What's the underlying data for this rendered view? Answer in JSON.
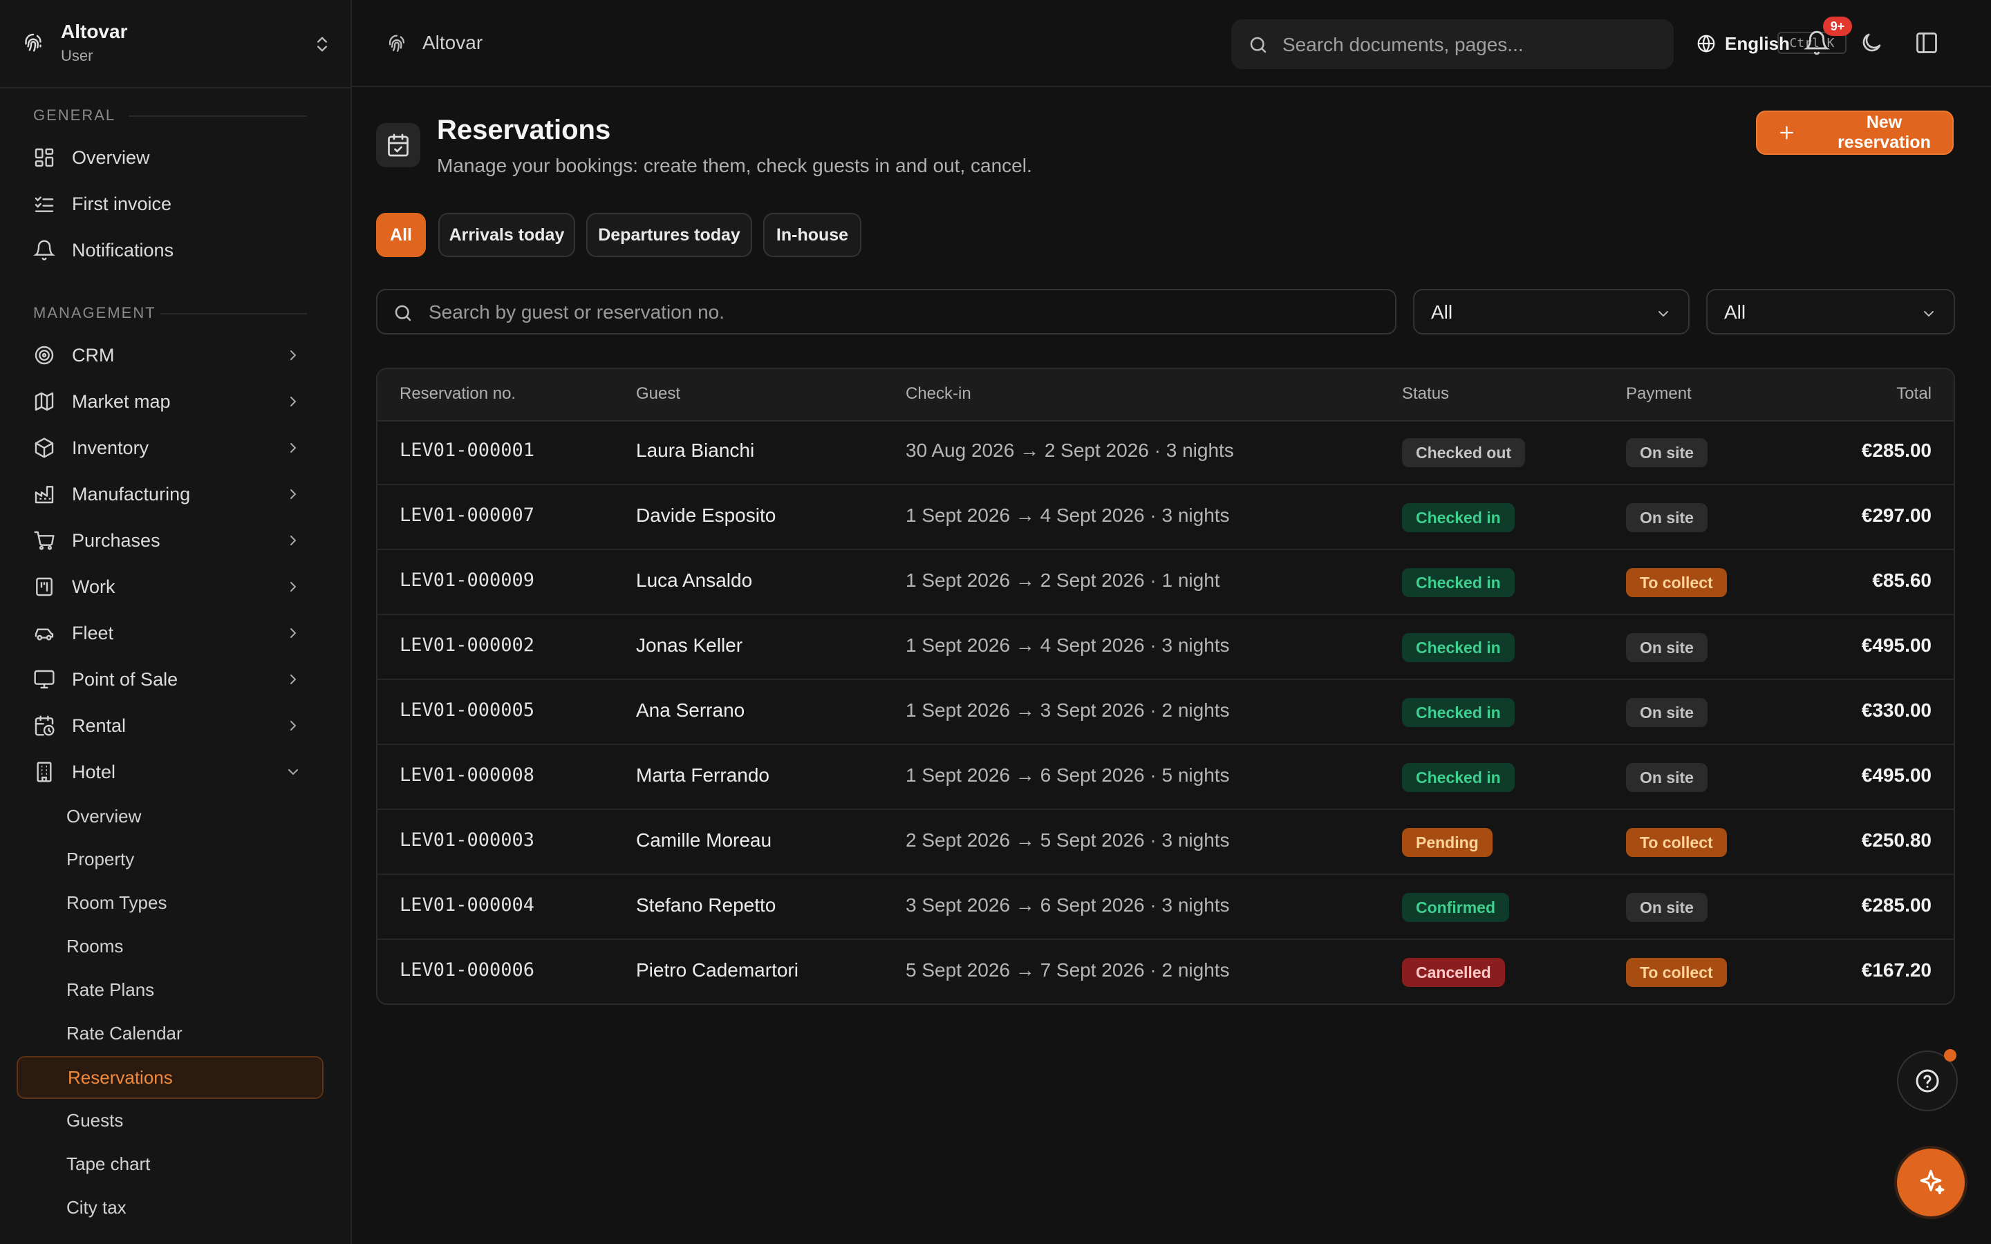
{
  "org": {
    "name": "Altovar",
    "role": "User"
  },
  "topbar": {
    "breadcrumb": "Altovar",
    "search_placeholder": "Search documents, pages...",
    "search_shortcut": "Ctrl K",
    "language": "English",
    "notifications_badge": "9+"
  },
  "sidebar": {
    "general_title": "GENERAL",
    "general_items": [
      {
        "label": "Overview",
        "icon": "dashboard-icon"
      },
      {
        "label": "First invoice",
        "icon": "checklist-icon"
      },
      {
        "label": "Notifications",
        "icon": "bell-icon"
      }
    ],
    "management_title": "MANAGEMENT",
    "management_items": [
      {
        "label": "CRM",
        "icon": "target-icon"
      },
      {
        "label": "Market map",
        "icon": "map-icon"
      },
      {
        "label": "Inventory",
        "icon": "box-icon"
      },
      {
        "label": "Manufacturing",
        "icon": "factory-icon"
      },
      {
        "label": "Purchases",
        "icon": "cart-icon"
      },
      {
        "label": "Work",
        "icon": "work-icon"
      },
      {
        "label": "Fleet",
        "icon": "car-icon"
      },
      {
        "label": "Point of Sale",
        "icon": "monitor-icon"
      },
      {
        "label": "Rental",
        "icon": "calendar-clock-icon"
      },
      {
        "label": "Hotel",
        "icon": "building-icon"
      }
    ],
    "hotel_items": [
      "Overview",
      "Property",
      "Room Types",
      "Rooms",
      "Rate Plans",
      "Rate Calendar",
      "Reservations",
      "Guests",
      "Tape chart",
      "City tax"
    ],
    "active_hotel_item": "Reservations"
  },
  "page": {
    "title": "Reservations",
    "subtitle": "Manage your bookings: create them, check guests in and out, cancel.",
    "new_button": "New reservation",
    "filter_chips": [
      "All",
      "Arrivals today",
      "Departures today",
      "In-house"
    ],
    "active_chip": "All",
    "search_placeholder": "Search by guest or reservation no.",
    "status_filter": "All",
    "payment_filter": "All"
  },
  "table": {
    "columns": [
      "Reservation no.",
      "Guest",
      "Check-in",
      "Status",
      "Payment",
      "Total"
    ],
    "rows": [
      {
        "no": "LEV01-000001",
        "guest": "Laura Bianchi",
        "dates": "30 Aug 2026 → 2 Sept 2026 · 3 nights",
        "status": "Checked out",
        "payment": "On site",
        "total": "€285.00"
      },
      {
        "no": "LEV01-000007",
        "guest": "Davide Esposito",
        "dates": "1 Sept 2026 → 4 Sept 2026 · 3 nights",
        "status": "Checked in",
        "payment": "On site",
        "total": "€297.00"
      },
      {
        "no": "LEV01-000009",
        "guest": "Luca Ansaldo",
        "dates": "1 Sept 2026 → 2 Sept 2026 · 1 night",
        "status": "Checked in",
        "payment": "To collect",
        "total": "€85.60"
      },
      {
        "no": "LEV01-000002",
        "guest": "Jonas Keller",
        "dates": "1 Sept 2026 → 4 Sept 2026 · 3 nights",
        "status": "Checked in",
        "payment": "On site",
        "total": "€495.00"
      },
      {
        "no": "LEV01-000005",
        "guest": "Ana Serrano",
        "dates": "1 Sept 2026 → 3 Sept 2026 · 2 nights",
        "status": "Checked in",
        "payment": "On site",
        "total": "€330.00"
      },
      {
        "no": "LEV01-000008",
        "guest": "Marta Ferrando",
        "dates": "1 Sept 2026 → 6 Sept 2026 · 5 nights",
        "status": "Checked in",
        "payment": "On site",
        "total": "€495.00"
      },
      {
        "no": "LEV01-000003",
        "guest": "Camille Moreau",
        "dates": "2 Sept 2026 → 5 Sept 2026 · 3 nights",
        "status": "Pending",
        "payment": "To collect",
        "total": "€250.80"
      },
      {
        "no": "LEV01-000004",
        "guest": "Stefano Repetto",
        "dates": "3 Sept 2026 → 6 Sept 2026 · 3 nights",
        "status": "Confirmed",
        "payment": "On site",
        "total": "€285.00"
      },
      {
        "no": "LEV01-000006",
        "guest": "Pietro Cademartori",
        "dates": "5 Sept 2026 → 7 Sept 2026 · 2 nights",
        "status": "Cancelled",
        "payment": "To collect",
        "total": "€167.20"
      }
    ]
  },
  "status_colors": {
    "Checked out": {
      "bg": "#2b2b2b",
      "fg": "#c4c4c4"
    },
    "Checked in": {
      "bg": "#0f3b2b",
      "fg": "#3fcf8e"
    },
    "Pending": {
      "bg": "#a84d12",
      "fg": "#ffd39a"
    },
    "Confirmed": {
      "bg": "#0f3b2b",
      "fg": "#3fcf8e"
    },
    "Cancelled": {
      "bg": "#8a1d1d",
      "fg": "#ffc9c9"
    },
    "On site": {
      "bg": "#2b2b2b",
      "fg": "#c4c4c4"
    },
    "To collect": {
      "bg": "#a84d12",
      "fg": "#ffd39a"
    }
  },
  "colors": {
    "accent": "#e0651f",
    "background": "#121212"
  }
}
